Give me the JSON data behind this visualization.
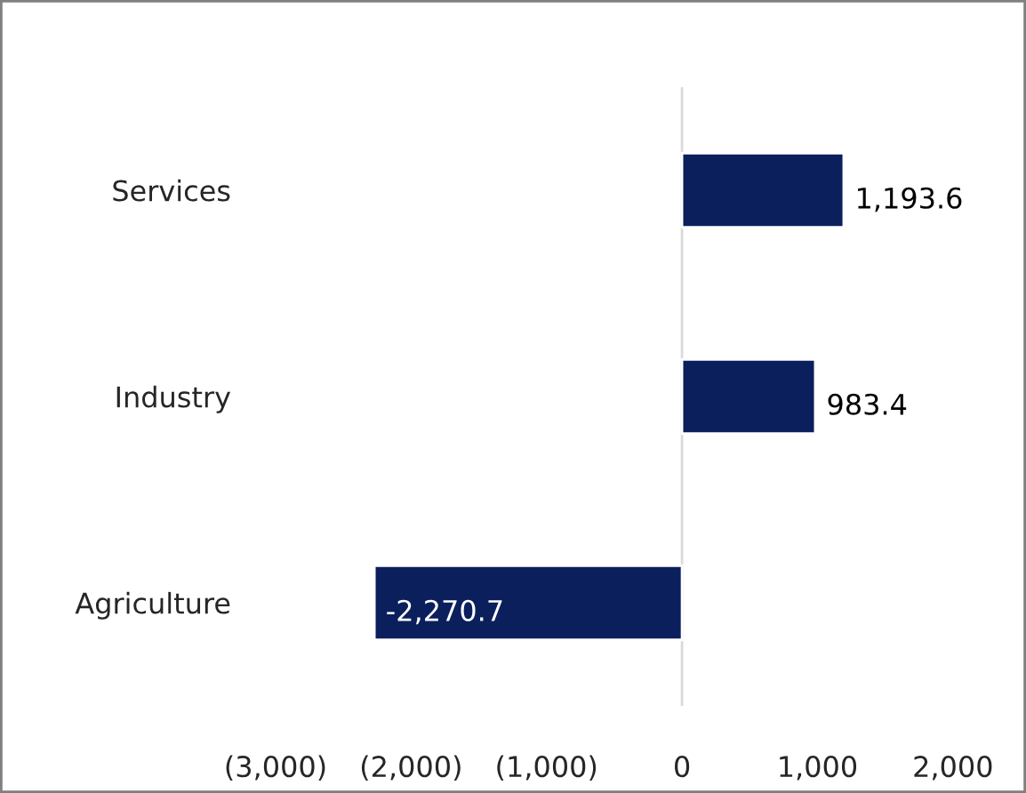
{
  "chart_data": {
    "type": "bar",
    "orientation": "horizontal",
    "categories": [
      "Services",
      "Industry",
      "Agriculture"
    ],
    "values": [
      1193.6,
      983.4,
      -2270.7
    ],
    "color": "#0b1f5c",
    "value_labels": [
      "1,193.6",
      "983.4",
      "-2,270.7"
    ],
    "xlim": [
      -3000,
      2500
    ],
    "xticks": [
      {
        "value": -3000,
        "label": "(3,000)"
      },
      {
        "value": -2000,
        "label": "(2,000)"
      },
      {
        "value": -1000,
        "label": "(1,000)"
      },
      0,
      {
        "value": 1000,
        "label": "1,000"
      },
      {
        "value": 2000,
        "label": "2,000"
      }
    ],
    "ref_lines": [
      {
        "axis": "x",
        "value": 0,
        "color": "#d9d9d9"
      }
    ],
    "grid": false,
    "legend": false
  }
}
